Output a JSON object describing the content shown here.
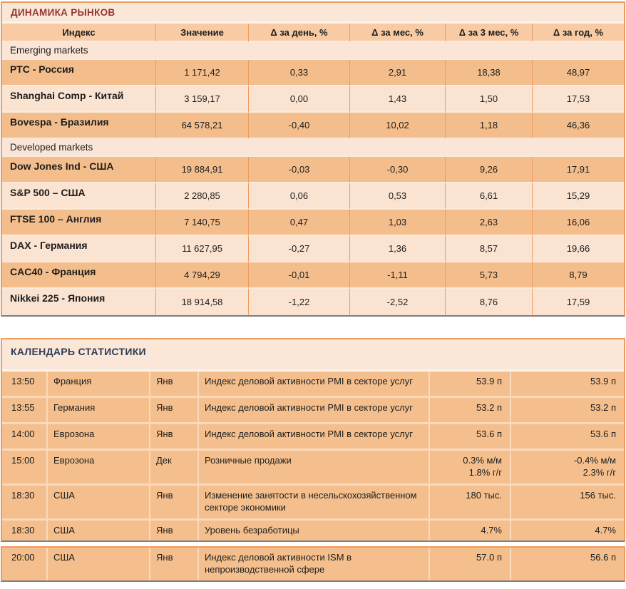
{
  "market": {
    "title": "ДИНАМИКА РЫНКОВ",
    "columns": [
      "Индекс",
      "Значение",
      "Δ за день, %",
      "Δ за мес, %",
      "Δ за 3 мес, %",
      "Δ за год, %"
    ],
    "groups": [
      {
        "label": "Emerging markets",
        "rows": [
          {
            "index": "РТС - Россия",
            "value": "1 171,42",
            "d_day": "0,33",
            "d_month": "2,91",
            "d_3month": "18,38",
            "d_year": "48,97"
          },
          {
            "index": "Shanghai Comp - Китай",
            "value": "3 159,17",
            "d_day": "0,00",
            "d_month": "1,43",
            "d_3month": "1,50",
            "d_year": "17,53"
          },
          {
            "index": "Bovespa - Бразилия",
            "value": "64 578,21",
            "d_day": "-0,40",
            "d_month": "10,02",
            "d_3month": "1,18",
            "d_year": "46,36"
          }
        ]
      },
      {
        "label": "Developed markets",
        "rows": [
          {
            "index": "Dow Jones Ind - США",
            "value": "19 884,91",
            "d_day": "-0,03",
            "d_month": "-0,30",
            "d_3month": "9,26",
            "d_year": "17,91"
          },
          {
            "index": "S&P 500 – США",
            "value": "2 280,85",
            "d_day": "0,06",
            "d_month": "0,53",
            "d_3month": "6,61",
            "d_year": "15,29"
          },
          {
            "index": "FTSE 100 – Англия",
            "value": "7 140,75",
            "d_day": "0,47",
            "d_month": "1,03",
            "d_3month": "2,63",
            "d_year": "16,06"
          },
          {
            "index": "DAX - Германия",
            "value": "11 627,95",
            "d_day": "-0,27",
            "d_month": "1,36",
            "d_3month": "8,57",
            "d_year": "19,66"
          },
          {
            "index": "CAC40 - Франция",
            "value": "4 794,29",
            "d_day": "-0,01",
            "d_month": "-1,11",
            "d_3month": "5,73",
            "d_year": "8,79"
          },
          {
            "index": "Nikkei 225 - Япония",
            "value": "18 914,58",
            "d_day": "-1,22",
            "d_month": "-2,52",
            "d_3month": "8,76",
            "d_year": "17,59"
          }
        ]
      }
    ]
  },
  "calendar": {
    "title": "КАЛЕНДАРЬ СТАТИСТИКИ",
    "rows": [
      {
        "time": "13:50",
        "region": "Франция",
        "period": "Янв",
        "event": "Индекс деловой  активности PMI в секторе  услуг",
        "forecast": "53.9 п",
        "previous": "53.9 п"
      },
      {
        "time": "13:55",
        "region": "Германия",
        "period": "Янв",
        "event": "Индекс деловой  активности PMI в секторе  услуг",
        "forecast": "53.2 п",
        "previous": "53.2 п"
      },
      {
        "time": "14:00",
        "region": "Еврозона",
        "period": "Янв",
        "event": "Индекс деловой  активности PMI в секторе  услуг",
        "forecast": "53.6 п",
        "previous": "53.6 п"
      },
      {
        "time": "15:00",
        "region": "Еврозона",
        "period": "Дек",
        "event": "Розничные продажи",
        "forecast": "0.3% м/м\n1.8% г/г",
        "previous": "-0.4% м/м\n2.3% г/г"
      },
      {
        "time": "18:30",
        "region": "США",
        "period": "Янв",
        "event": "Изменение занятости в несельскохозяйственном\nсекторе  экономики",
        "forecast": "180 тыс.",
        "previous": "156 тыс."
      },
      {
        "time": "18:30",
        "region": "США",
        "period": "Янв",
        "event": "Уровень  безработицы",
        "forecast": "4.7%",
        "previous": "4.7%"
      }
    ],
    "continued_rows": [
      {
        "time": "20:00",
        "region": "США",
        "period": "Янв",
        "event": "Индекс деловой  активности ISM в\nнепроизводственной  сфере",
        "forecast": "57.0 п",
        "previous": "56.6 п"
      }
    ]
  },
  "colors": {
    "accent-border": "#ED9C5F",
    "row-dark": "#F4BE8C",
    "row-light": "#FBE3D1",
    "header-bg": "#F8CBA4",
    "section-bg": "#FBE5D6",
    "title-bg": "#FBE7D8",
    "market-title-color": "#943634",
    "calendar-title-color": "#2E3D55",
    "cal-row": "#F4BF8D",
    "cal-sep": "#FAD9BC",
    "row-sep": "#FBEADB",
    "gray-cut": "#7F7F7F"
  }
}
